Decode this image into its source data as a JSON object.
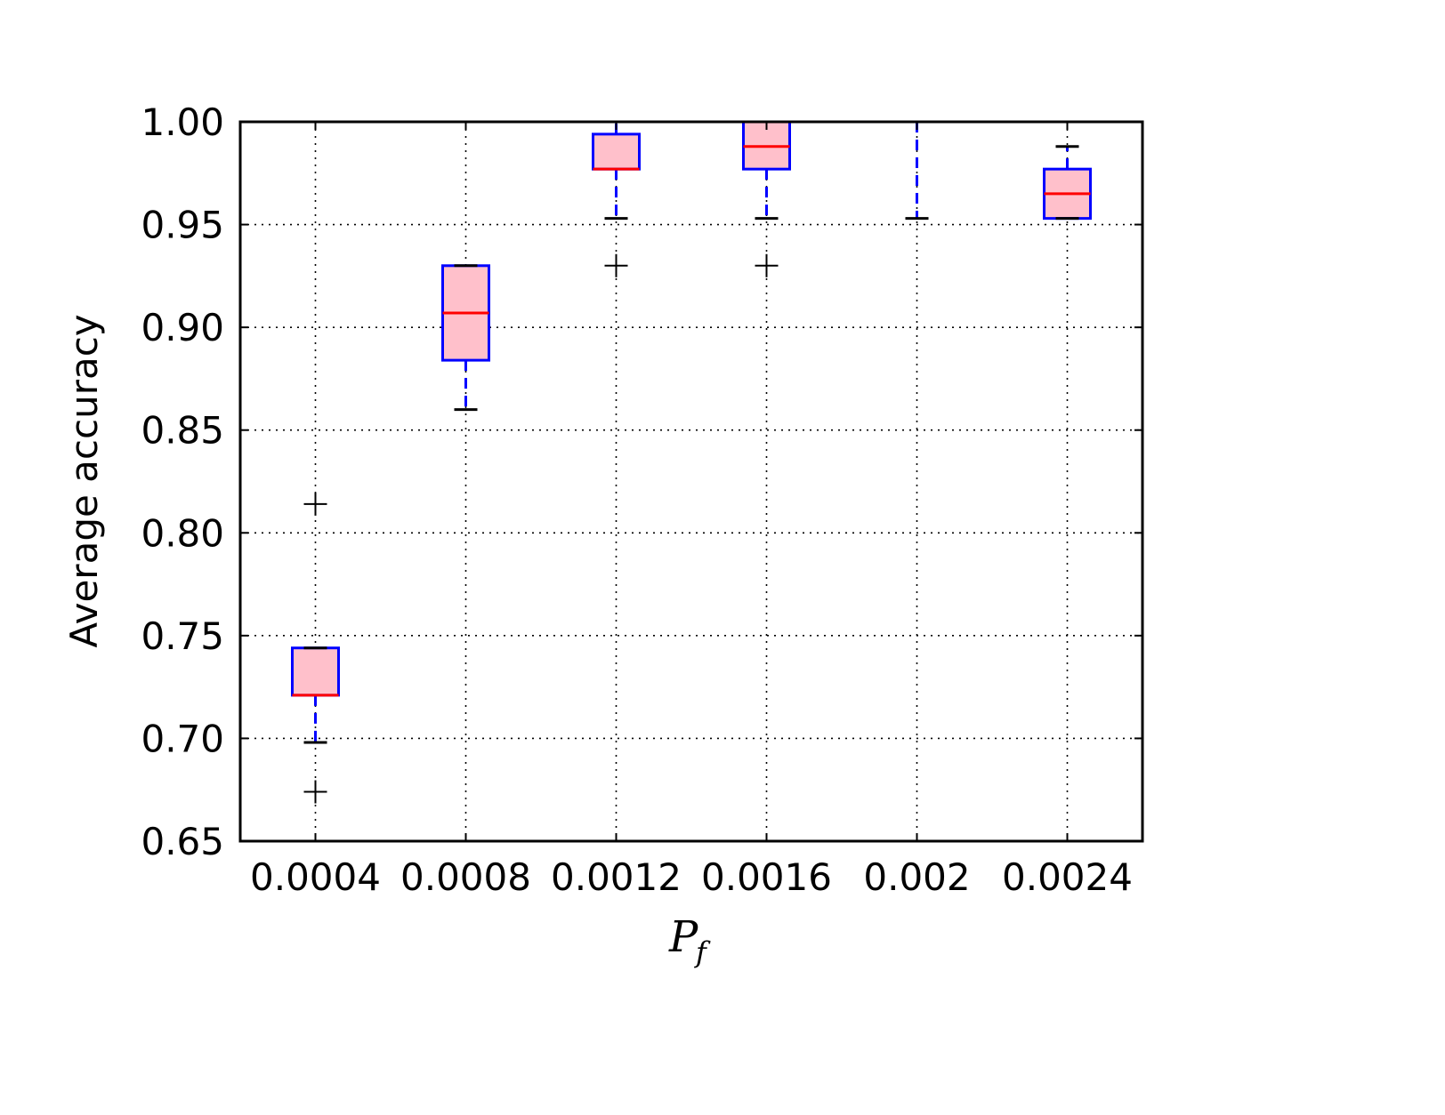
{
  "chart_data": {
    "type": "box",
    "xlabel_main": "P",
    "xlabel_sub": "f",
    "ylabel": "Average accuracy",
    "ylim": [
      0.65,
      1.0
    ],
    "yticks": [
      0.65,
      0.7,
      0.75,
      0.8,
      0.85,
      0.9,
      0.95,
      1.0
    ],
    "ytick_labels": [
      "0.65",
      "0.70",
      "0.75",
      "0.80",
      "0.85",
      "0.90",
      "0.95",
      "1.00"
    ],
    "categories": [
      "0.0004",
      "0.0008",
      "0.0012",
      "0.0016",
      "0.002",
      "0.0024"
    ],
    "grid": true,
    "boxes": [
      {
        "category": "0.0004",
        "whisker_low": 0.698,
        "q1": 0.721,
        "median": 0.721,
        "q3": 0.744,
        "whisker_high": 0.744,
        "outliers": [
          0.814,
          0.674
        ]
      },
      {
        "category": "0.0008",
        "whisker_low": 0.86,
        "q1": 0.884,
        "median": 0.907,
        "q3": 0.93,
        "whisker_high": 0.93,
        "outliers": []
      },
      {
        "category": "0.0012",
        "whisker_low": 0.953,
        "q1": 0.977,
        "median": 0.977,
        "q3": 0.994,
        "whisker_high": 1.0,
        "outliers": [
          0.93
        ]
      },
      {
        "category": "0.0016",
        "whisker_low": 0.953,
        "q1": 0.977,
        "median": 0.988,
        "q3": 1.0,
        "whisker_high": 1.0,
        "outliers": [
          0.93
        ]
      },
      {
        "category": "0.002",
        "whisker_low": 0.953,
        "q1": 1.0,
        "median": 1.0,
        "q3": 1.0,
        "whisker_high": 1.0,
        "outliers": []
      },
      {
        "category": "0.0024",
        "whisker_low": 0.953,
        "q1": 0.953,
        "median": 0.965,
        "q3": 0.977,
        "whisker_high": 0.988,
        "outliers": []
      }
    ],
    "colors": {
      "box_edge": "#0000ff",
      "box_fill": "#ffc0cb",
      "median": "#ff0000",
      "whisker": "#0000ff",
      "cap": "#000000",
      "flier": "#000000",
      "grid": "#000000",
      "frame": "#000000"
    }
  }
}
